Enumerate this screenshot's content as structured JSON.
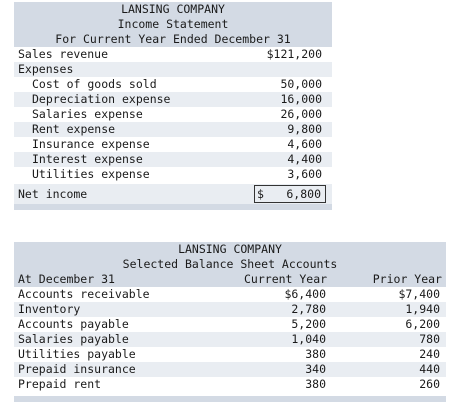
{
  "income_statement": {
    "company": "LANSING COMPANY",
    "title": "Income Statement",
    "period": "For Current Year Ended December 31",
    "sales_label": "Sales revenue",
    "sales_value": "$121,200",
    "expenses_label": "Expenses",
    "expenses": [
      {
        "label": "Cost of goods sold",
        "value": "50,000"
      },
      {
        "label": "Depreciation expense",
        "value": "16,000"
      },
      {
        "label": "Salaries expense",
        "value": "26,000"
      },
      {
        "label": "Rent expense",
        "value": "9,800"
      },
      {
        "label": "Insurance expense",
        "value": "4,600"
      },
      {
        "label": "Interest expense",
        "value": "4,400"
      },
      {
        "label": "Utilities expense",
        "value": "3,600"
      }
    ],
    "net_income_label": "Net income",
    "net_income_dollar": "$",
    "net_income_value": "6,800"
  },
  "balance_sheet": {
    "company": "LANSING COMPANY",
    "title": "Selected Balance Sheet Accounts",
    "date_label": "At December 31",
    "current_year_label": "Current Year",
    "prior_year_label": "Prior Year",
    "accounts": [
      {
        "label": "Accounts receivable",
        "current": "$6,400",
        "prior": "$7,400"
      },
      {
        "label": "Inventory",
        "current": "2,780",
        "prior": "1,940"
      },
      {
        "label": "Accounts payable",
        "current": "5,200",
        "prior": "6,200"
      },
      {
        "label": "Salaries payable",
        "current": "1,040",
        "prior": "780"
      },
      {
        "label": "Utilities payable",
        "current": "380",
        "prior": "240"
      },
      {
        "label": "Prepaid insurance",
        "current": "340",
        "prior": "440"
      },
      {
        "label": "Prepaid rent",
        "current": "380",
        "prior": "260"
      }
    ]
  }
}
